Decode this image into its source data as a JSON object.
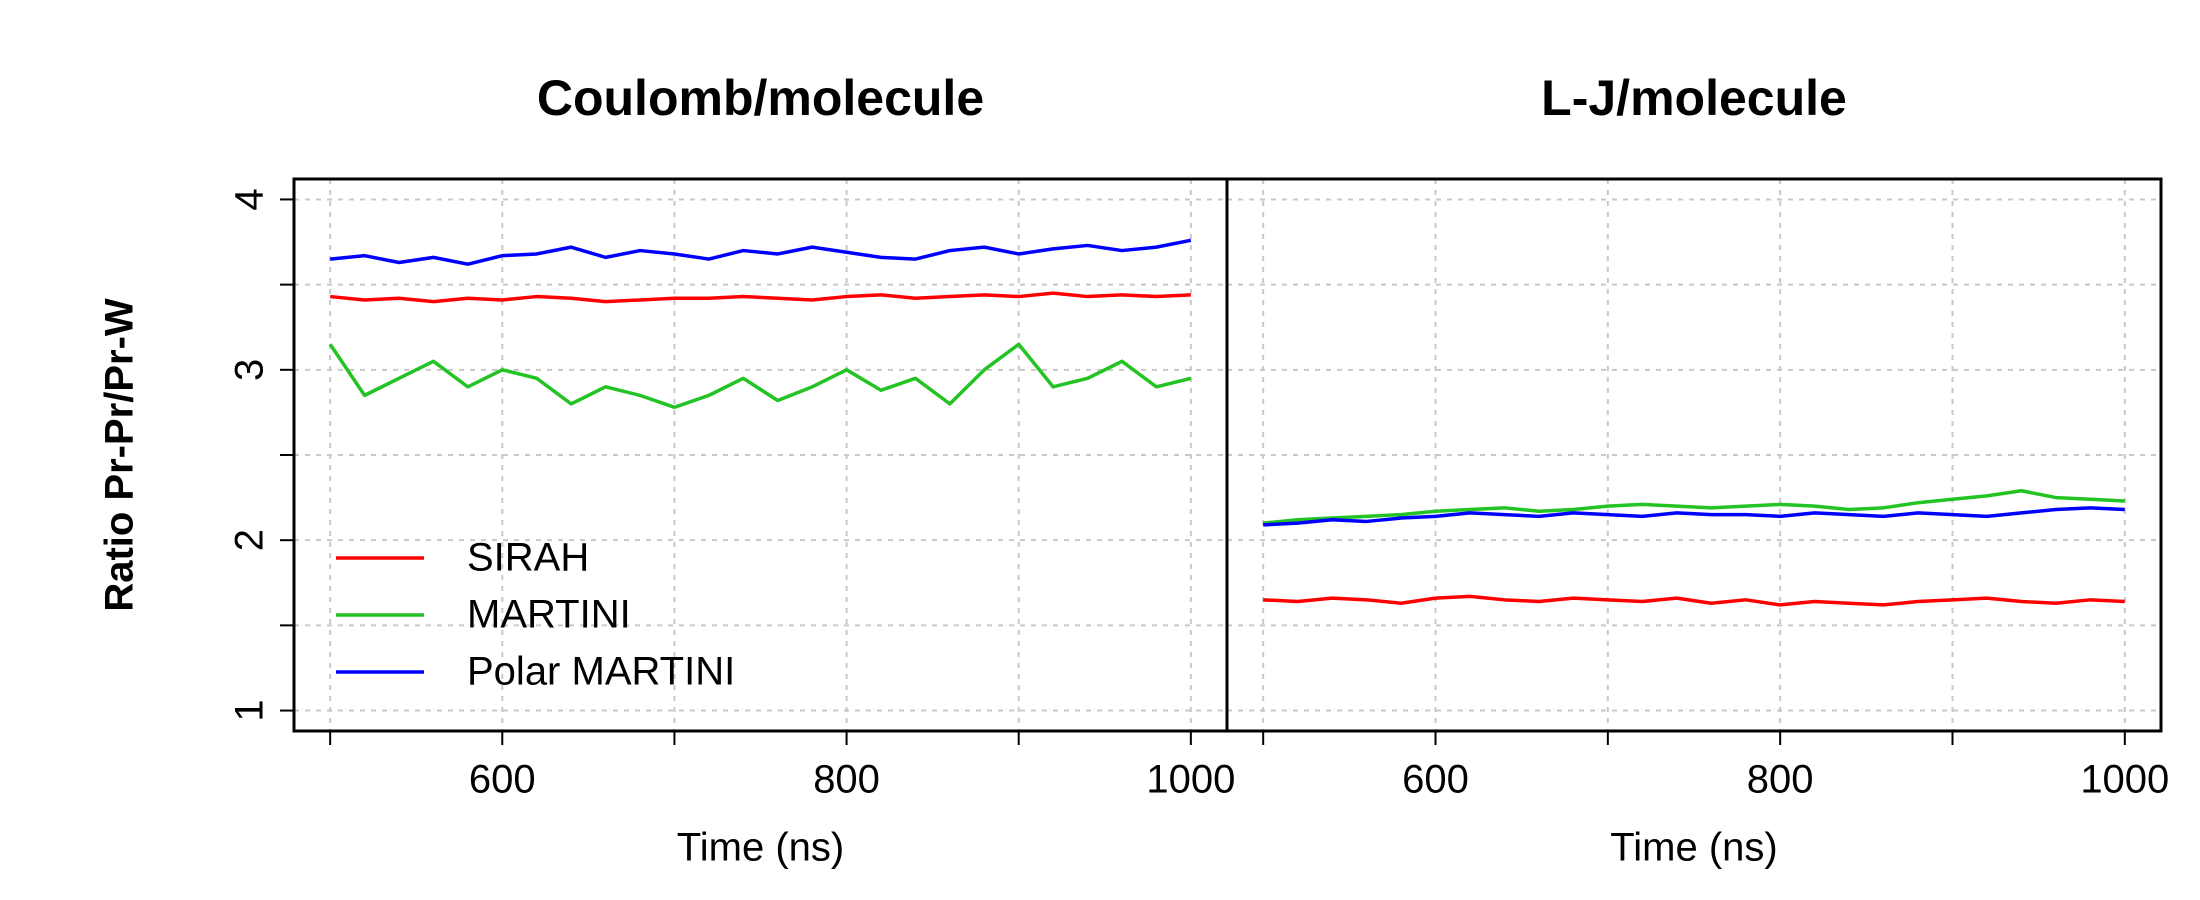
{
  "chart_data": [
    {
      "type": "line",
      "title": "Coulomb/molecule",
      "xlabel": "Time (ns)",
      "ylabel": "Ratio Pr-Pr/Pr-W",
      "x": [
        500,
        520,
        540,
        560,
        580,
        600,
        620,
        640,
        660,
        680,
        700,
        720,
        740,
        760,
        780,
        800,
        820,
        840,
        860,
        880,
        900,
        920,
        940,
        960,
        980,
        1000
      ],
      "series": [
        {
          "name": "SIRAH",
          "color": "#ff0000",
          "values": [
            3.43,
            3.41,
            3.42,
            3.4,
            3.42,
            3.41,
            3.43,
            3.42,
            3.4,
            3.41,
            3.42,
            3.42,
            3.43,
            3.42,
            3.41,
            3.43,
            3.44,
            3.42,
            3.43,
            3.44,
            3.43,
            3.45,
            3.43,
            3.44,
            3.43,
            3.44
          ]
        },
        {
          "name": "MARTINI",
          "color": "#22c322",
          "values": [
            3.15,
            2.85,
            2.95,
            3.05,
            2.9,
            3.0,
            2.95,
            2.8,
            2.9,
            2.85,
            2.78,
            2.85,
            2.95,
            2.82,
            2.9,
            3.0,
            2.88,
            2.95,
            2.8,
            3.0,
            3.15,
            2.9,
            2.95,
            3.05,
            2.9,
            2.95
          ]
        },
        {
          "name": "Polar MARTINI",
          "color": "#0000ff",
          "values": [
            3.65,
            3.67,
            3.63,
            3.66,
            3.62,
            3.67,
            3.68,
            3.72,
            3.66,
            3.7,
            3.68,
            3.65,
            3.7,
            3.68,
            3.72,
            3.69,
            3.66,
            3.65,
            3.7,
            3.72,
            3.68,
            3.71,
            3.73,
            3.7,
            3.72,
            3.76
          ]
        }
      ],
      "xlim": [
        479,
        1021
      ],
      "ylim": [
        0.88,
        4.12
      ],
      "xticks": [
        600,
        800,
        1000
      ],
      "xminor_ticks": [
        500,
        700,
        900
      ],
      "yticks": [
        1,
        2,
        3,
        4
      ],
      "yminor_ticks": [
        1.5,
        2.5,
        3.5
      ],
      "grid": true,
      "legend": "bottom-left"
    },
    {
      "type": "line",
      "title": "L-J/molecule",
      "xlabel": "Time (ns)",
      "x": [
        500,
        520,
        540,
        560,
        580,
        600,
        620,
        640,
        660,
        680,
        700,
        720,
        740,
        760,
        780,
        800,
        820,
        840,
        860,
        880,
        900,
        920,
        940,
        960,
        980,
        1000
      ],
      "series": [
        {
          "name": "SIRAH",
          "color": "#ff0000",
          "values": [
            1.65,
            1.64,
            1.66,
            1.65,
            1.63,
            1.66,
            1.67,
            1.65,
            1.64,
            1.66,
            1.65,
            1.64,
            1.66,
            1.63,
            1.65,
            1.62,
            1.64,
            1.63,
            1.62,
            1.64,
            1.65,
            1.66,
            1.64,
            1.63,
            1.65,
            1.64
          ]
        },
        {
          "name": "MARTINI",
          "color": "#22c322",
          "values": [
            2.1,
            2.12,
            2.13,
            2.14,
            2.15,
            2.17,
            2.18,
            2.19,
            2.17,
            2.18,
            2.2,
            2.21,
            2.2,
            2.19,
            2.2,
            2.21,
            2.2,
            2.18,
            2.19,
            2.22,
            2.24,
            2.26,
            2.29,
            2.25,
            2.24,
            2.23
          ]
        },
        {
          "name": "Polar MARTINI",
          "color": "#0000ff",
          "values": [
            2.09,
            2.1,
            2.12,
            2.11,
            2.13,
            2.14,
            2.16,
            2.15,
            2.14,
            2.16,
            2.15,
            2.14,
            2.16,
            2.15,
            2.15,
            2.14,
            2.16,
            2.15,
            2.14,
            2.16,
            2.15,
            2.14,
            2.16,
            2.18,
            2.19,
            2.18
          ]
        }
      ],
      "xlim": [
        479,
        1021
      ],
      "ylim": [
        0.88,
        4.12
      ],
      "xticks": [
        600,
        800,
        1000
      ],
      "xminor_ticks": [
        500,
        700,
        900
      ],
      "yticks": [
        1,
        2,
        3,
        4
      ],
      "yminor_ticks": [
        1.5,
        2.5,
        3.5
      ],
      "grid": true
    }
  ]
}
